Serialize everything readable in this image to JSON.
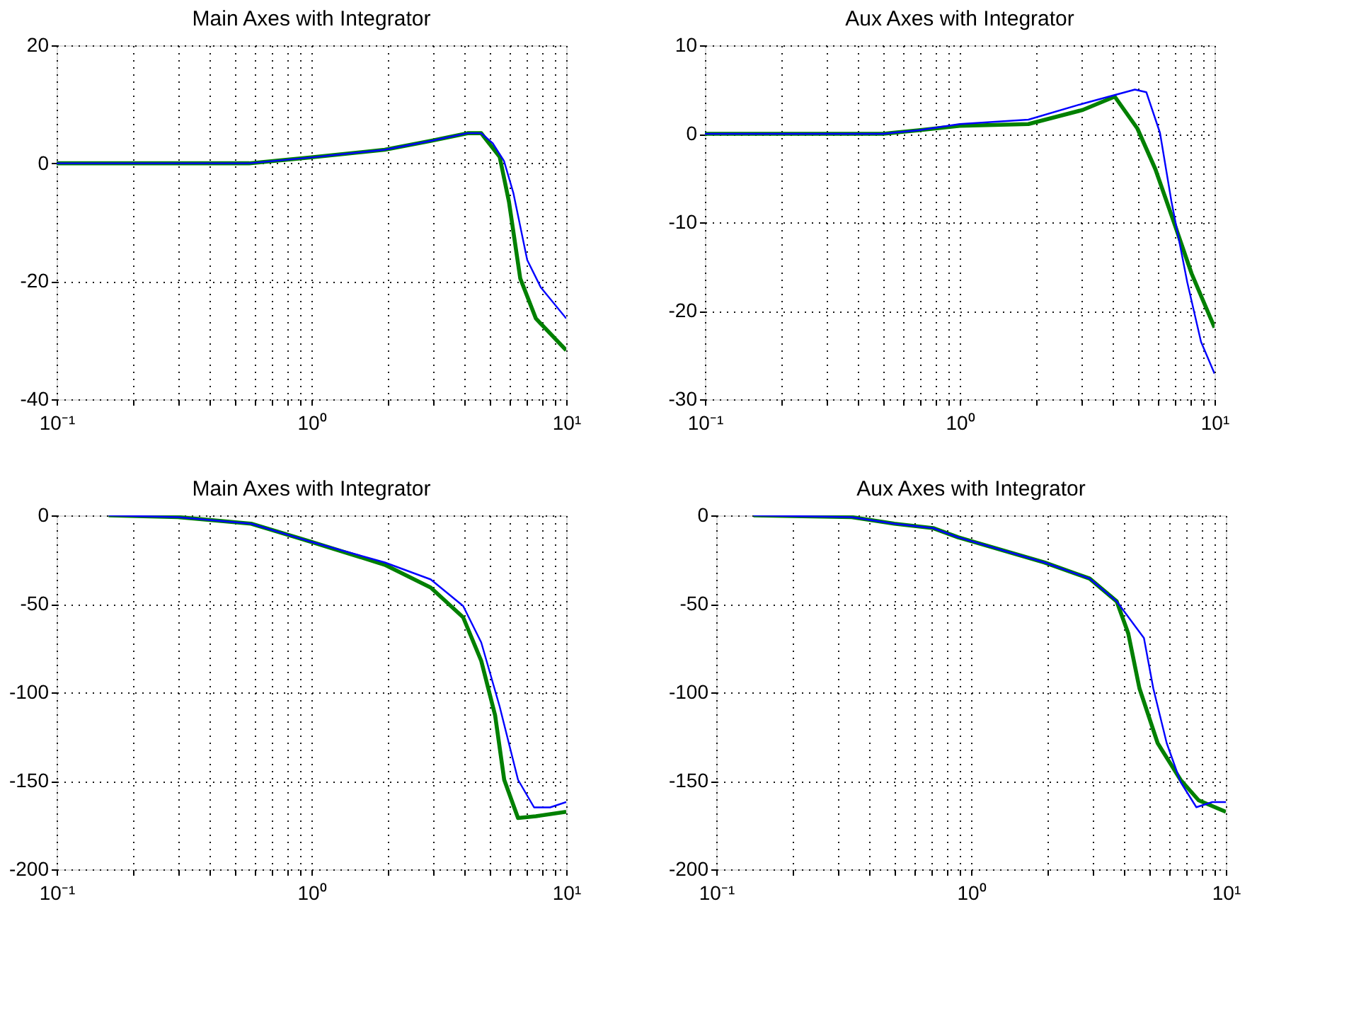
{
  "chart_data": [
    {
      "type": "line",
      "title": "Main Axes with Integrator",
      "log": "x",
      "grid": true,
      "xlim": [
        0.1,
        10
      ],
      "ylim": [
        -40,
        20
      ],
      "yticks": [
        -40,
        -20,
        0,
        20
      ],
      "xticks": [
        {
          "value": 0.1,
          "label": "10⁻¹"
        },
        {
          "value": 0.2,
          "label": null
        },
        {
          "value": 0.3,
          "label": null
        },
        {
          "value": 0.4,
          "label": null
        },
        {
          "value": 0.5,
          "label": null
        },
        {
          "value": 0.6,
          "label": null
        },
        {
          "value": 0.7,
          "label": null
        },
        {
          "value": 0.8,
          "label": null
        },
        {
          "value": 0.9,
          "label": null
        },
        {
          "value": 1,
          "label": "10⁰"
        },
        {
          "value": 2,
          "label": null
        },
        {
          "value": 3,
          "label": null
        },
        {
          "value": 4,
          "label": null
        },
        {
          "value": 5,
          "label": null
        },
        {
          "value": 6,
          "label": null
        },
        {
          "value": 7,
          "label": null
        },
        {
          "value": 8,
          "label": null
        },
        {
          "value": 9,
          "label": null
        },
        {
          "value": 10,
          "label": "10¹"
        }
      ],
      "series": [
        {
          "color": "#0000ff",
          "x": [
            0.1,
            0.57,
            1,
            1.94,
            2.94,
            4.1,
            4.64,
            5.15,
            5.7,
            6.2,
            7.03,
            7.94,
            10
          ],
          "values": [
            0,
            0,
            1,
            2.3,
            3.8,
            5.1,
            5.1,
            3.4,
            0.4,
            -5,
            -16.4,
            -21,
            -26.3
          ]
        },
        {
          "color": "#008000",
          "x": [
            0.1,
            0.57,
            1,
            1.94,
            2.94,
            4.1,
            4.64,
            5.48,
            5.96,
            6.6,
            7.6,
            10
          ],
          "values": [
            0,
            0,
            1,
            2.3,
            3.8,
            5.1,
            5.1,
            1.1,
            -6.5,
            -19.5,
            -26.3,
            -31.7
          ]
        }
      ]
    },
    {
      "type": "line",
      "title": "Aux Axes with Integrator",
      "log": "x",
      "grid": true,
      "xlim": [
        0.1,
        10
      ],
      "ylim": [
        -30,
        10
      ],
      "yticks": [
        -30,
        -20,
        -10,
        0,
        10
      ],
      "xticks": [
        {
          "value": 0.1,
          "label": "10⁻¹"
        },
        {
          "value": 0.2,
          "label": null
        },
        {
          "value": 0.3,
          "label": null
        },
        {
          "value": 0.4,
          "label": null
        },
        {
          "value": 0.5,
          "label": null
        },
        {
          "value": 0.6,
          "label": null
        },
        {
          "value": 0.7,
          "label": null
        },
        {
          "value": 0.8,
          "label": null
        },
        {
          "value": 0.9,
          "label": null
        },
        {
          "value": 1,
          "label": "10⁰"
        },
        {
          "value": 2,
          "label": null
        },
        {
          "value": 3,
          "label": null
        },
        {
          "value": 4,
          "label": null
        },
        {
          "value": 5,
          "label": null
        },
        {
          "value": 6,
          "label": null
        },
        {
          "value": 7,
          "label": null
        },
        {
          "value": 8,
          "label": null
        },
        {
          "value": 9,
          "label": null
        },
        {
          "value": 10,
          "label": "10¹"
        }
      ],
      "series": [
        {
          "color": "#0000ff",
          "x": [
            0.1,
            0.5,
            0.69,
            1,
            1.86,
            3.04,
            4.87,
            5.4,
            6.11,
            6.77,
            7.82,
            8.85,
            10
          ],
          "values": [
            0,
            0,
            0.4,
            1.1,
            1.6,
            3.4,
            5,
            4.7,
            0.1,
            -7.6,
            -16.8,
            -23.5,
            -27.1
          ]
        },
        {
          "color": "#008000",
          "x": [
            0.1,
            0.5,
            0.69,
            1,
            1.86,
            3.04,
            4.06,
            4.98,
            5.86,
            6.91,
            8.13,
            10
          ],
          "values": [
            0,
            0,
            0.4,
            0.9,
            1.1,
            2.7,
            4.2,
            0.6,
            -4,
            -9.9,
            -15.8,
            -21.9
          ]
        }
      ]
    },
    {
      "type": "line",
      "title": "Main Axes with Integrator",
      "log": "x",
      "grid": true,
      "xlim": [
        0.1,
        10
      ],
      "ylim": [
        -200,
        0
      ],
      "yticks": [
        -200,
        -150,
        -100,
        -50,
        0
      ],
      "xticks": [
        {
          "value": 0.1,
          "label": "10⁻¹"
        },
        {
          "value": 0.2,
          "label": null
        },
        {
          "value": 0.3,
          "label": null
        },
        {
          "value": 0.4,
          "label": null
        },
        {
          "value": 0.5,
          "label": null
        },
        {
          "value": 0.6,
          "label": null
        },
        {
          "value": 0.7,
          "label": null
        },
        {
          "value": 0.8,
          "label": null
        },
        {
          "value": 0.9,
          "label": null
        },
        {
          "value": 1,
          "label": "10⁰"
        },
        {
          "value": 2,
          "label": null
        },
        {
          "value": 3,
          "label": null
        },
        {
          "value": 4,
          "label": null
        },
        {
          "value": 5,
          "label": null
        },
        {
          "value": 6,
          "label": null
        },
        {
          "value": 7,
          "label": null
        },
        {
          "value": 8,
          "label": null
        },
        {
          "value": 9,
          "label": null
        },
        {
          "value": 10,
          "label": "10¹"
        }
      ],
      "series": [
        {
          "color": "#0000ff",
          "x": [
            0.16,
            0.3,
            0.58,
            1,
            1.94,
            2.94,
            3.94,
            4.64,
            5.48,
            6.47,
            7.48,
            8.65,
            10
          ],
          "values": [
            0,
            -1,
            -4.7,
            -15,
            -26.6,
            -36.2,
            -51.2,
            -71.8,
            -108,
            -149.4,
            -165,
            -165,
            -162
          ]
        },
        {
          "color": "#008000",
          "x": [
            0.16,
            0.3,
            0.58,
            1,
            1.94,
            2.94,
            3.94,
            4.64,
            5.26,
            5.71,
            6.47,
            7.6,
            10
          ],
          "values": [
            0,
            -1,
            -4.7,
            -15,
            -27.9,
            -40.8,
            -57.6,
            -82.2,
            -113,
            -149.4,
            -171,
            -170,
            -167.5
          ]
        }
      ]
    },
    {
      "type": "line",
      "title": "Aux Axes with Integrator",
      "log": "x",
      "grid": true,
      "xlim": [
        0.1,
        10
      ],
      "ylim": [
        -200,
        0
      ],
      "yticks": [
        -200,
        -150,
        -100,
        -50,
        0
      ],
      "xticks": [
        {
          "value": 0.1,
          "label": "10⁻¹"
        },
        {
          "value": 0.2,
          "label": null
        },
        {
          "value": 0.3,
          "label": null
        },
        {
          "value": 0.4,
          "label": null
        },
        {
          "value": 0.5,
          "label": null
        },
        {
          "value": 0.6,
          "label": null
        },
        {
          "value": 0.7,
          "label": null
        },
        {
          "value": 0.8,
          "label": null
        },
        {
          "value": 0.9,
          "label": null
        },
        {
          "value": 1,
          "label": "10⁰"
        },
        {
          "value": 2,
          "label": null
        },
        {
          "value": 3,
          "label": null
        },
        {
          "value": 4,
          "label": null
        },
        {
          "value": 5,
          "label": null
        },
        {
          "value": 6,
          "label": null
        },
        {
          "value": 7,
          "label": null
        },
        {
          "value": 8,
          "label": null
        },
        {
          "value": 9,
          "label": null
        },
        {
          "value": 10,
          "label": "10¹"
        }
      ],
      "series": [
        {
          "color": "#0000ff",
          "x": [
            0.14,
            0.34,
            0.5,
            0.71,
            0.89,
            1.94,
            2.92,
            3.73,
            4.77,
            5.19,
            5.86,
            6.64,
            7.66,
            8.85,
            10
          ],
          "values": [
            0,
            -1,
            -4.7,
            -7.2,
            -12.4,
            -26.6,
            -35.7,
            -48.6,
            -69.3,
            -97.7,
            -128.7,
            -150.6,
            -164.9,
            -162,
            -162
          ]
        },
        {
          "color": "#008000",
          "x": [
            0.14,
            0.34,
            0.5,
            0.71,
            0.89,
            1.94,
            2.92,
            3.73,
            4.14,
            4.58,
            5.4,
            6.64,
            7.82,
            10
          ],
          "values": [
            0,
            -1,
            -4.7,
            -7.2,
            -12.4,
            -26.6,
            -35.7,
            -48.6,
            -66.7,
            -97.7,
            -128.7,
            -149.4,
            -161,
            -167.5
          ]
        }
      ]
    }
  ]
}
